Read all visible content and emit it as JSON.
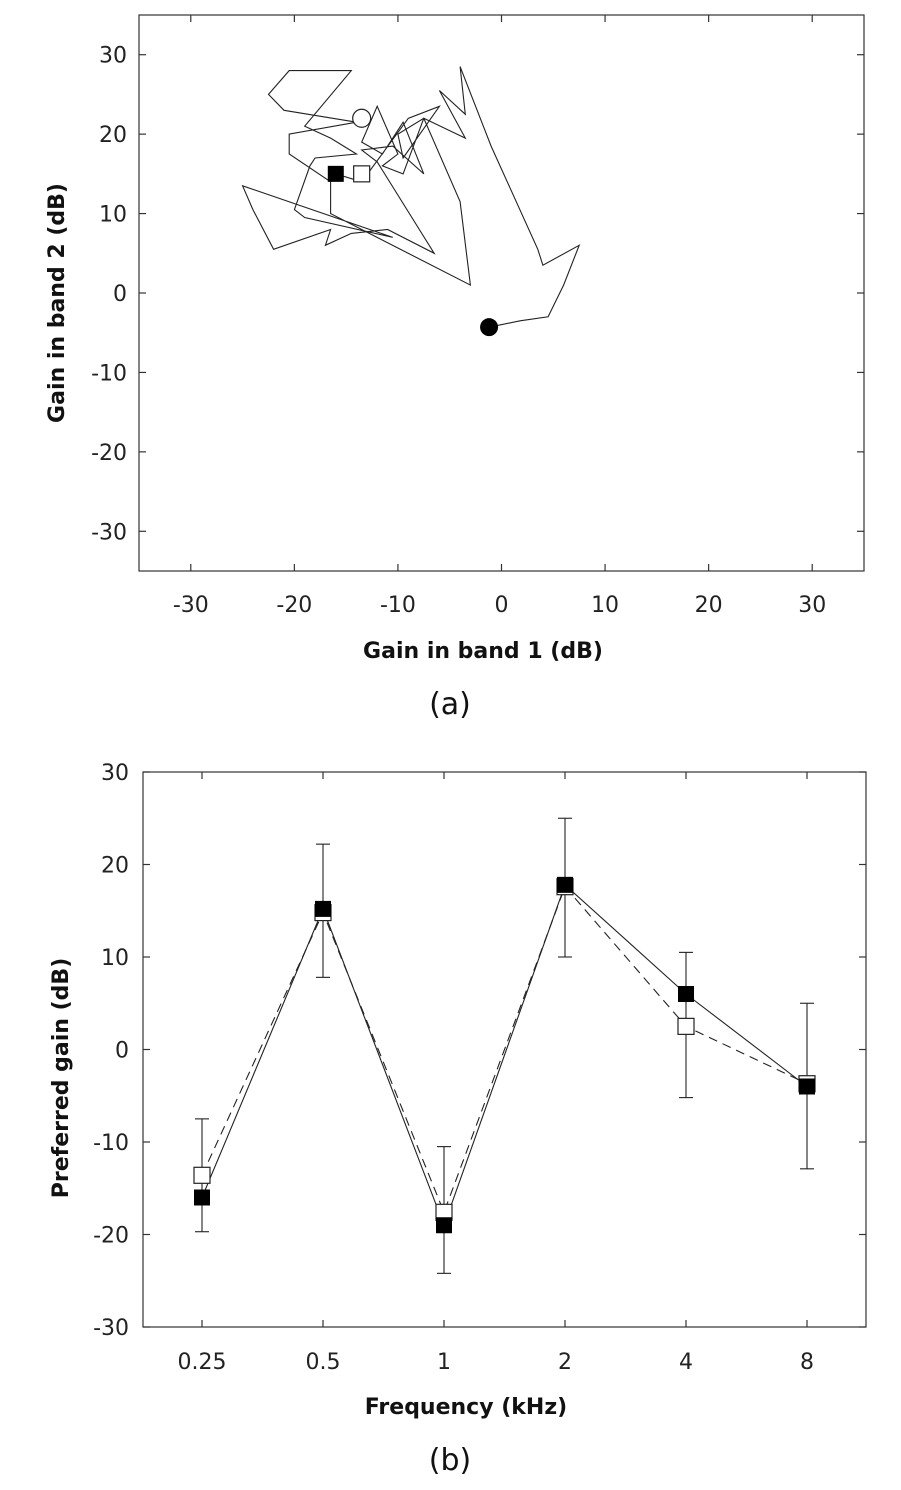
{
  "chart_data": [
    {
      "type": "line",
      "panel_label": "(a)",
      "xlabel": "Gain in band 1 (dB)",
      "ylabel": "Gain in band 2 (dB)",
      "xlim": [
        -35,
        35
      ],
      "ylim": [
        -35,
        35
      ],
      "xticks": [
        -30,
        -20,
        -10,
        0,
        10,
        20,
        30
      ],
      "yticks": [
        -30,
        -20,
        -10,
        0,
        10,
        20,
        30
      ],
      "grid": false,
      "series": [
        {
          "marker": "none",
          "x": [
            -1.2,
            1.8,
            4.5,
            6,
            7.5,
            4,
            3.5,
            -1,
            -4,
            -3.5,
            -6,
            -3.5,
            -7.5,
            -9.5,
            -11.5,
            -10,
            -12,
            -13.5,
            -11.5,
            -9.5,
            -7.5,
            -10.5,
            -13.5,
            -12,
            -6.5,
            -11,
            -14.5,
            -17,
            -16.5,
            -22,
            -24,
            -25,
            -10.5,
            -19,
            -20,
            -18.5,
            -18,
            -14,
            -16.5,
            -19,
            -14.5,
            -20.5,
            -22.5,
            -21,
            -14,
            -20.5,
            -20.5,
            -16.5,
            -16.5,
            -3,
            -4,
            -7.5,
            -10,
            -9.5,
            -6,
            -9,
            -13.5,
            -16
          ],
          "y": [
            -4.3,
            -3.5,
            -3,
            1,
            6,
            3.5,
            5.5,
            18.5,
            28.5,
            22.5,
            25.5,
            19.5,
            22,
            15,
            16,
            17.5,
            23.5,
            19,
            17.5,
            21.5,
            15,
            18.5,
            18,
            16.5,
            5,
            8,
            7.5,
            6,
            8,
            5.5,
            10.5,
            13.5,
            7,
            9.5,
            10.5,
            16,
            17,
            17.5,
            19.5,
            21,
            28,
            28,
            25,
            23,
            21.5,
            20,
            17.5,
            14,
            10,
            1,
            11.5,
            22,
            20,
            17,
            23.5,
            22,
            14,
            15
          ]
        }
      ],
      "points": [
        {
          "marker": "filled-circle",
          "x": -1.2,
          "y": -4.3
        },
        {
          "marker": "open-circle",
          "x": -13.5,
          "y": 22
        },
        {
          "marker": "filled-square",
          "x": -16,
          "y": 15
        },
        {
          "marker": "open-square",
          "x": -13.5,
          "y": 15
        }
      ]
    },
    {
      "type": "line",
      "panel_label": "(b)",
      "xlabel": "Frequency (kHz)",
      "ylabel": "Preferred gain (dB)",
      "categories": [
        "0.25",
        "0.5",
        "1",
        "2",
        "4",
        "8"
      ],
      "ylim": [
        -30,
        30
      ],
      "yticks": [
        -30,
        -20,
        -10,
        0,
        10,
        20,
        30
      ],
      "grid": false,
      "series": [
        {
          "marker": "filled-square",
          "line": "solid",
          "values": [
            -16,
            15.2,
            -19,
            17.8,
            6,
            -4
          ],
          "error_low": [
            -19.7,
            7.8,
            -24.2,
            10,
            -5.2,
            -12.9
          ],
          "error_high": [
            -7.5,
            22.2,
            -10.5,
            25,
            10.5,
            5
          ]
        },
        {
          "marker": "open-square",
          "line": "dashed",
          "values": [
            -13.6,
            14.8,
            -17.6,
            17.6,
            2.5,
            -3.7
          ]
        }
      ]
    }
  ]
}
